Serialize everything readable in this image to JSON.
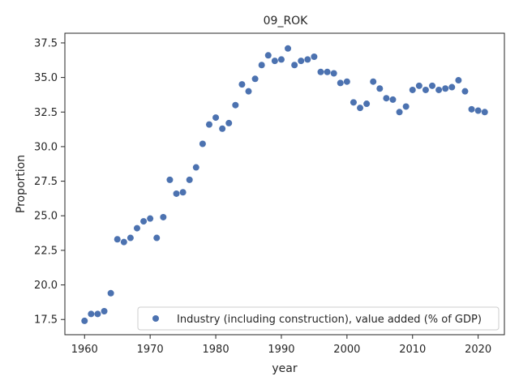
{
  "chart_data": {
    "type": "scatter",
    "title": "09_ROK",
    "xlabel": "year",
    "ylabel": "Proportion",
    "xlim": [
      1957,
      2024
    ],
    "ylim": [
      16.4,
      38.2
    ],
    "xticks": [
      1960,
      1970,
      1980,
      1990,
      2000,
      2010,
      2020
    ],
    "yticks": [
      17.5,
      20.0,
      22.5,
      25.0,
      27.5,
      30.0,
      32.5,
      35.0,
      37.5
    ],
    "ytick_labels": [
      "17.5",
      "20.0",
      "22.5",
      "25.0",
      "27.5",
      "30.0",
      "32.5",
      "35.0",
      "37.5"
    ],
    "grid": false,
    "legend_position": "lower-right",
    "color": "#4c72b0",
    "series": [
      {
        "name": "Industry (including construction), value added (% of GDP)",
        "x": [
          1960,
          1961,
          1962,
          1963,
          1964,
          1965,
          1966,
          1967,
          1968,
          1969,
          1970,
          1971,
          1972,
          1973,
          1974,
          1975,
          1976,
          1977,
          1978,
          1979,
          1980,
          1981,
          1982,
          1983,
          1984,
          1985,
          1986,
          1987,
          1988,
          1989,
          1990,
          1991,
          1992,
          1993,
          1994,
          1995,
          1996,
          1997,
          1998,
          1999,
          2000,
          2001,
          2002,
          2003,
          2004,
          2005,
          2006,
          2007,
          2008,
          2009,
          2010,
          2011,
          2012,
          2013,
          2014,
          2015,
          2016,
          2017,
          2018,
          2019,
          2020,
          2021
        ],
        "y": [
          17.4,
          17.9,
          17.9,
          18.1,
          19.4,
          23.3,
          23.1,
          23.4,
          24.1,
          24.6,
          24.8,
          23.4,
          24.9,
          27.6,
          26.6,
          26.7,
          27.6,
          28.5,
          30.2,
          31.6,
          32.1,
          31.3,
          31.7,
          33.0,
          34.5,
          34.0,
          34.9,
          35.9,
          36.6,
          36.2,
          36.3,
          37.1,
          35.9,
          36.2,
          36.3,
          36.5,
          35.4,
          35.4,
          35.3,
          34.6,
          34.7,
          33.2,
          32.8,
          33.1,
          34.7,
          34.2,
          33.5,
          33.4,
          32.5,
          32.9,
          34.1,
          34.4,
          34.1,
          34.4,
          34.1,
          34.2,
          34.3,
          34.8,
          34.0,
          32.7,
          32.6,
          32.5
        ]
      }
    ]
  }
}
